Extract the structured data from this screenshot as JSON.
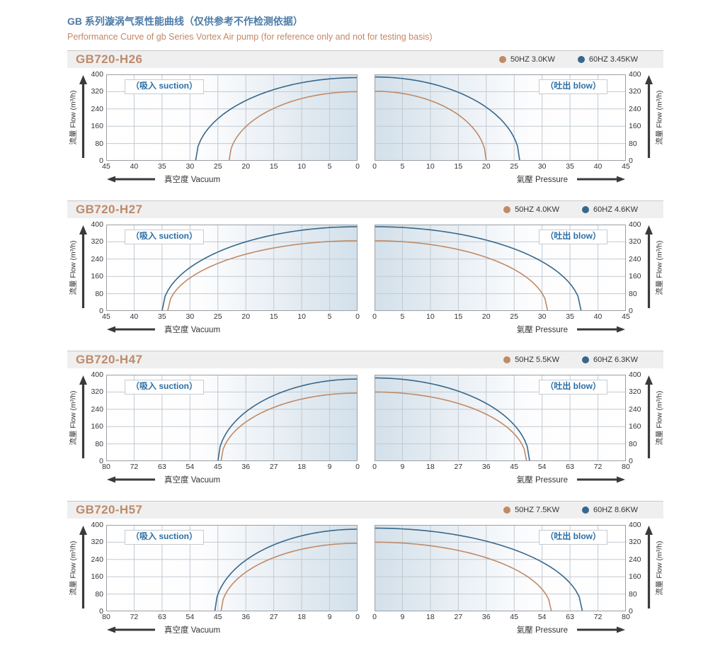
{
  "page": {
    "title_zh": "GB 系列漩涡气泵性能曲线（仅供参考不作检测依据）",
    "title_en": "Performance Curve of gb Series Vortex Air pump (for reference only and not for testing basis)"
  },
  "colors": {
    "hz50": "#c08a66",
    "hz60": "#37688c",
    "grid": "#c2cad1",
    "plot_border": "#9aa0a7",
    "gradient_blue": "#d3e0ea",
    "axis_ink": "#3a3a3a"
  },
  "axis": {
    "y_ticks": [
      400,
      320,
      240,
      160,
      80,
      0
    ],
    "flow_label": "流量 Flow (m³/h)",
    "suction_badge": "（吸入 suction）",
    "blow_badge": "（吐出 blow）",
    "vacuum_label": "真空度  Vacuum",
    "pressure_label": "氣壓  Pressure"
  },
  "chart_data": [
    {
      "model": "GB720-H26",
      "legend": [
        {
          "label": "50HZ  3.0KW",
          "color_key": "hz50"
        },
        {
          "label": "60HZ  3.45KW",
          "color_key": "hz60"
        }
      ],
      "charts": [
        {
          "type": "line",
          "side": "suction",
          "badge": "（吸入 suction）",
          "xlabel": "真空度  Vacuum",
          "ylabel": "流量 Flow (m³/h)",
          "ylim": [
            0,
            400
          ],
          "x_ticks": [
            45,
            40,
            35,
            30,
            25,
            20,
            15,
            10,
            5,
            0
          ],
          "series": [
            {
              "name": "50HZ",
              "color_key": "hz50",
              "x_intercept": 23,
              "y_max": 320,
              "points": [
                [
                  0,
                  320
                ],
                [
                  5.8,
                  310
                ],
                [
                  11.5,
                  277
                ],
                [
                  17.3,
                  212
                ],
                [
                  20.7,
                  139
                ],
                [
                  23,
                  0
                ]
              ]
            },
            {
              "name": "60HZ",
              "color_key": "hz60",
              "x_intercept": 29,
              "y_max": 385,
              "points": [
                [
                  0,
                  385
                ],
                [
                  7.3,
                  373
                ],
                [
                  14.5,
                  333
                ],
                [
                  21.8,
                  255
                ],
                [
                  26.1,
                  168
                ],
                [
                  29,
                  0
                ]
              ]
            }
          ]
        },
        {
          "type": "line",
          "side": "blow",
          "badge": "（吐出 blow）",
          "xlabel": "氣壓  Pressure",
          "ylabel": "流量 Flow (m³/h)",
          "ylim": [
            0,
            400
          ],
          "x_ticks": [
            0,
            5,
            10,
            15,
            20,
            25,
            30,
            35,
            40,
            45
          ],
          "series": [
            {
              "name": "50HZ",
              "color_key": "hz50",
              "x_intercept": 20,
              "y_max": 322,
              "points": [
                [
                  0,
                  322
                ],
                [
                  5,
                  312
                ],
                [
                  10,
                  279
                ],
                [
                  15,
                  213
                ],
                [
                  18,
                  140
                ],
                [
                  20,
                  0
                ]
              ]
            },
            {
              "name": "60HZ",
              "color_key": "hz60",
              "x_intercept": 26,
              "y_max": 388,
              "points": [
                [
                  0,
                  388
                ],
                [
                  6.5,
                  376
                ],
                [
                  13,
                  336
                ],
                [
                  19.5,
                  257
                ],
                [
                  23.4,
                  169
                ],
                [
                  26,
                  0
                ]
              ]
            }
          ]
        }
      ]
    },
    {
      "model": "GB720-H27",
      "legend": [
        {
          "label": "50HZ  4.0KW",
          "color_key": "hz50"
        },
        {
          "label": "60HZ  4.6KW",
          "color_key": "hz60"
        }
      ],
      "charts": [
        {
          "type": "line",
          "side": "suction",
          "badge": "（吸入 suction）",
          "xlabel": "真空度  Vacuum",
          "ylabel": "流量 Flow (m³/h)",
          "ylim": [
            0,
            400
          ],
          "x_ticks": [
            45,
            40,
            35,
            30,
            25,
            20,
            15,
            10,
            5,
            0
          ],
          "series": [
            {
              "name": "50HZ",
              "color_key": "hz50",
              "x_intercept": 34,
              "y_max": 325,
              "points": [
                [
                  0,
                  325
                ],
                [
                  8.5,
                  315
                ],
                [
                  17,
                  281
                ],
                [
                  25.5,
                  215
                ],
                [
                  30.6,
                  142
                ],
                [
                  34,
                  0
                ]
              ]
            },
            {
              "name": "60HZ",
              "color_key": "hz60",
              "x_intercept": 35,
              "y_max": 390,
              "points": [
                [
                  0,
                  390
                ],
                [
                  8.8,
                  378
                ],
                [
                  17.5,
                  338
                ],
                [
                  26.3,
                  258
                ],
                [
                  31.5,
                  170
                ],
                [
                  35,
                  0
                ]
              ]
            }
          ]
        },
        {
          "type": "line",
          "side": "blow",
          "badge": "（吐出 blow）",
          "xlabel": "氣壓  Pressure",
          "ylabel": "流量 Flow (m³/h)",
          "ylim": [
            0,
            400
          ],
          "x_ticks": [
            0,
            5,
            10,
            15,
            20,
            25,
            30,
            35,
            40,
            45
          ],
          "series": [
            {
              "name": "50HZ",
              "color_key": "hz50",
              "x_intercept": 31,
              "y_max": 325,
              "points": [
                [
                  0,
                  325
                ],
                [
                  7.8,
                  315
                ],
                [
                  15.5,
                  281
                ],
                [
                  23.3,
                  215
                ],
                [
                  27.9,
                  142
                ],
                [
                  31,
                  0
                ]
              ]
            },
            {
              "name": "60HZ",
              "color_key": "hz60",
              "x_intercept": 37,
              "y_max": 390,
              "points": [
                [
                  0,
                  390
                ],
                [
                  9.3,
                  378
                ],
                [
                  18.5,
                  338
                ],
                [
                  27.8,
                  258
                ],
                [
                  33.3,
                  170
                ],
                [
                  37,
                  0
                ]
              ]
            }
          ]
        }
      ]
    },
    {
      "model": "GB720-H47",
      "legend": [
        {
          "label": "50HZ  5.5KW",
          "color_key": "hz50"
        },
        {
          "label": "60HZ  6.3KW",
          "color_key": "hz60"
        }
      ],
      "charts": [
        {
          "type": "line",
          "side": "suction",
          "badge": "（吸入 suction）",
          "xlabel": "真空度  Vacuum",
          "ylabel": "流量 Flow (m³/h)",
          "ylim": [
            0,
            400
          ],
          "x_ticks": [
            80,
            72,
            63,
            54,
            45,
            36,
            27,
            18,
            9,
            0
          ],
          "series": [
            {
              "name": "50HZ",
              "color_key": "hz50",
              "x_intercept": 44,
              "y_max": 315,
              "points": [
                [
                  0,
                  315
                ],
                [
                  11,
                  305
                ],
                [
                  22,
                  273
                ],
                [
                  33,
                  208
                ],
                [
                  39.6,
                  137
                ],
                [
                  44,
                  0
                ]
              ]
            },
            {
              "name": "60HZ",
              "color_key": "hz60",
              "x_intercept": 45,
              "y_max": 380,
              "points": [
                [
                  0,
                  380
                ],
                [
                  11.3,
                  368
                ],
                [
                  22.5,
                  329
                ],
                [
                  33.8,
                  251
                ],
                [
                  40.5,
                  166
                ],
                [
                  45,
                  0
                ]
              ]
            }
          ]
        },
        {
          "type": "line",
          "side": "blow",
          "badge": "（吐出 blow）",
          "xlabel": "氣壓  Pressure",
          "ylabel": "流量 Flow (m³/h)",
          "ylim": [
            0,
            400
          ],
          "x_ticks": [
            0,
            9,
            18,
            27,
            36,
            45,
            54,
            63,
            72,
            80
          ],
          "series": [
            {
              "name": "50HZ",
              "color_key": "hz50",
              "x_intercept": 49,
              "y_max": 320,
              "points": [
                [
                  0,
                  320
                ],
                [
                  12.3,
                  310
                ],
                [
                  24.5,
                  277
                ],
                [
                  36.8,
                  212
                ],
                [
                  44.1,
                  139
                ],
                [
                  49,
                  0
                ]
              ]
            },
            {
              "name": "60HZ",
              "color_key": "hz60",
              "x_intercept": 50,
              "y_max": 385,
              "points": [
                [
                  0,
                  385
                ],
                [
                  12.5,
                  373
                ],
                [
                  25,
                  333
                ],
                [
                  37.5,
                  255
                ],
                [
                  45,
                  168
                ],
                [
                  50,
                  0
                ]
              ]
            }
          ]
        }
      ]
    },
    {
      "model": "GB720-H57",
      "legend": [
        {
          "label": "50HZ  7.5KW",
          "color_key": "hz50"
        },
        {
          "label": "60HZ  8.6KW",
          "color_key": "hz60"
        }
      ],
      "charts": [
        {
          "type": "line",
          "side": "suction",
          "badge": "（吸入 suction）",
          "xlabel": "真空度  Vacuum",
          "ylabel": "流量 Flow (m³/h)",
          "ylim": [
            0,
            400
          ],
          "x_ticks": [
            80,
            72,
            63,
            54,
            45,
            36,
            27,
            18,
            9,
            0
          ],
          "series": [
            {
              "name": "50HZ",
              "color_key": "hz50",
              "x_intercept": 44,
              "y_max": 315,
              "points": [
                [
                  0,
                  315
                ],
                [
                  11,
                  305
                ],
                [
                  22,
                  273
                ],
                [
                  33,
                  208
                ],
                [
                  39.6,
                  137
                ],
                [
                  44,
                  0
                ]
              ]
            },
            {
              "name": "60HZ",
              "color_key": "hz60",
              "x_intercept": 46,
              "y_max": 380,
              "points": [
                [
                  0,
                  380
                ],
                [
                  11.5,
                  368
                ],
                [
                  23,
                  329
                ],
                [
                  34.5,
                  251
                ],
                [
                  41.4,
                  166
                ],
                [
                  46,
                  0
                ]
              ]
            }
          ]
        },
        {
          "type": "line",
          "side": "blow",
          "badge": "（吐出 blow）",
          "xlabel": "氣壓  Pressure",
          "ylabel": "流量 Flow (m³/h)",
          "ylim": [
            0,
            400
          ],
          "x_ticks": [
            0,
            9,
            18,
            27,
            36,
            45,
            54,
            63,
            72,
            80
          ],
          "series": [
            {
              "name": "50HZ",
              "color_key": "hz50",
              "x_intercept": 57,
              "y_max": 320,
              "points": [
                [
                  0,
                  320
                ],
                [
                  14.3,
                  310
                ],
                [
                  28.5,
                  277
                ],
                [
                  42.8,
                  212
                ],
                [
                  51.3,
                  139
                ],
                [
                  57,
                  0
                ]
              ]
            },
            {
              "name": "60HZ",
              "color_key": "hz60",
              "x_intercept": 67,
              "y_max": 385,
              "points": [
                [
                  0,
                  385
                ],
                [
                  16.8,
                  373
                ],
                [
                  33.5,
                  333
                ],
                [
                  50.3,
                  255
                ],
                [
                  60.3,
                  168
                ],
                [
                  67,
                  0
                ]
              ]
            }
          ]
        }
      ]
    }
  ]
}
